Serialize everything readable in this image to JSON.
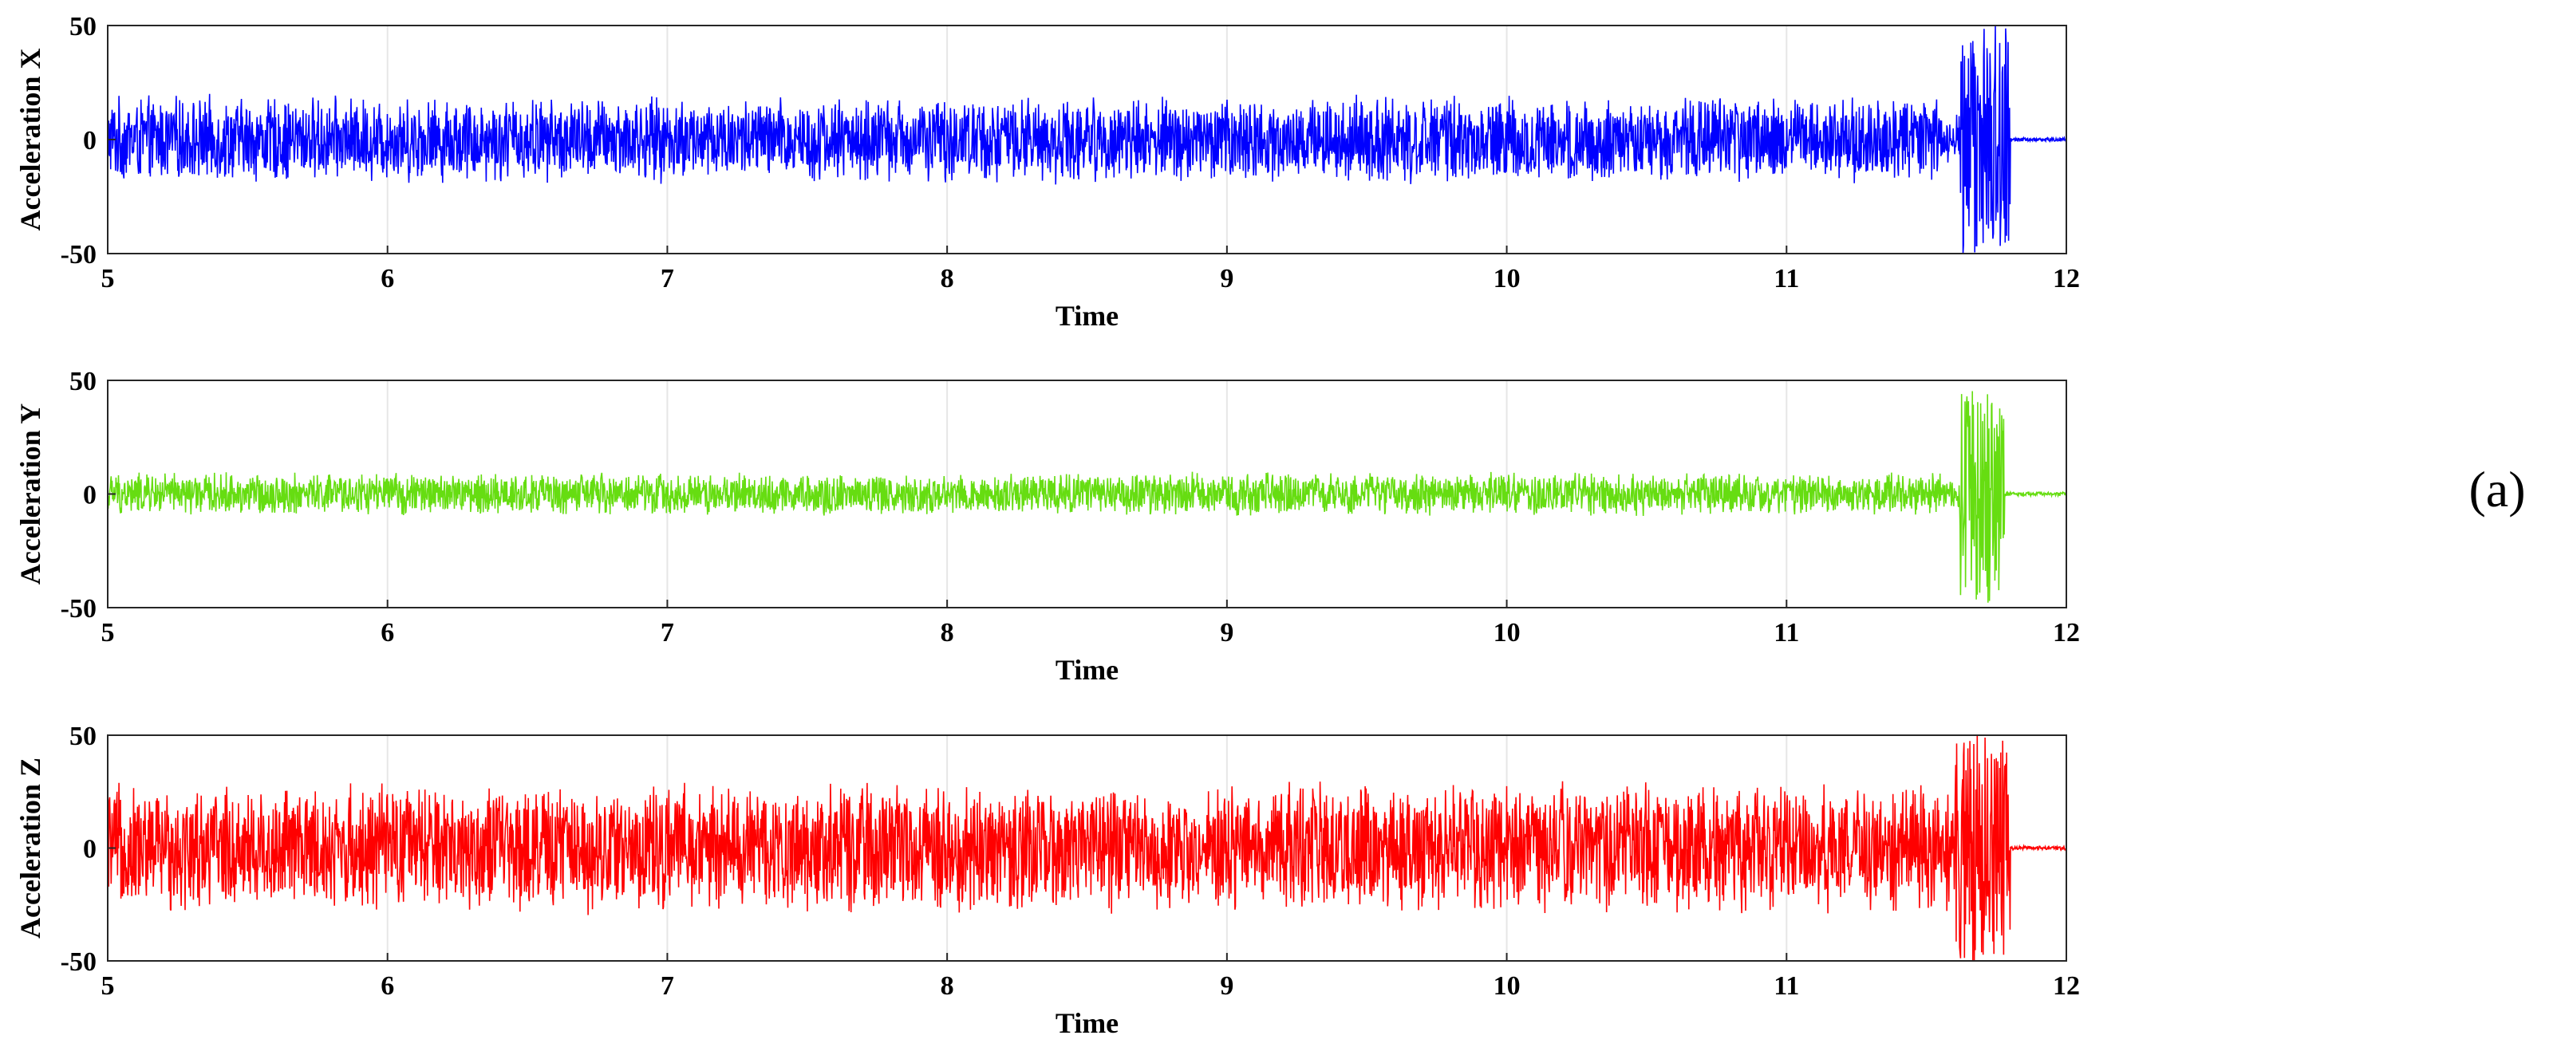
{
  "panel_label": "(a)",
  "chart_data": [
    {
      "type": "line",
      "title": "",
      "xlabel": "Time",
      "ylabel": "Acceleration X",
      "xlim": [
        5,
        12
      ],
      "ylim": [
        -50,
        50
      ],
      "xticks": [
        "5",
        "6",
        "7",
        "8",
        "9",
        "10",
        "11",
        "12"
      ],
      "yticks": [
        "-50",
        "0",
        "50"
      ],
      "grid": "vertical",
      "color": "#0000ff",
      "series": [
        {
          "segments": [
            {
              "x0": 5.0,
              "x1": 11.55,
              "amplitude": 20
            },
            {
              "x0": 11.55,
              "x1": 11.62,
              "amplitude": 12
            },
            {
              "x0": 11.62,
              "x1": 11.8,
              "amplitude": 50
            },
            {
              "x0": 11.8,
              "x1": 12.0,
              "amplitude": 1
            }
          ]
        }
      ]
    },
    {
      "type": "line",
      "title": "",
      "xlabel": "Time",
      "ylabel": "Acceleration Y",
      "xlim": [
        5,
        12
      ],
      "ylim": [
        -50,
        50
      ],
      "xticks": [
        "5",
        "6",
        "7",
        "8",
        "9",
        "10",
        "11",
        "12"
      ],
      "yticks": [
        "-50",
        "0",
        "50"
      ],
      "grid": "vertical",
      "color": "#66dd11",
      "series": [
        {
          "segments": [
            {
              "x0": 5.0,
              "x1": 11.55,
              "amplitude": 10
            },
            {
              "x0": 11.55,
              "x1": 11.62,
              "amplitude": 6
            },
            {
              "x0": 11.62,
              "x1": 11.78,
              "amplitude": 50
            },
            {
              "x0": 11.78,
              "x1": 12.0,
              "amplitude": 1
            }
          ]
        }
      ]
    },
    {
      "type": "line",
      "title": "",
      "xlabel": "Time",
      "ylabel": "Acceleration Z",
      "xlim": [
        5,
        12
      ],
      "ylim": [
        -50,
        50
      ],
      "xticks": [
        "5",
        "6",
        "7",
        "8",
        "9",
        "10",
        "11",
        "12"
      ],
      "yticks": [
        "-50",
        "0",
        "50"
      ],
      "grid": "vertical",
      "color": "#ff0000",
      "series": [
        {
          "segments": [
            {
              "x0": 5.0,
              "x1": 11.6,
              "amplitude": 30
            },
            {
              "x0": 11.6,
              "x1": 11.8,
              "amplitude": 50
            },
            {
              "x0": 11.8,
              "x1": 12.0,
              "amplitude": 1
            }
          ]
        }
      ]
    }
  ]
}
